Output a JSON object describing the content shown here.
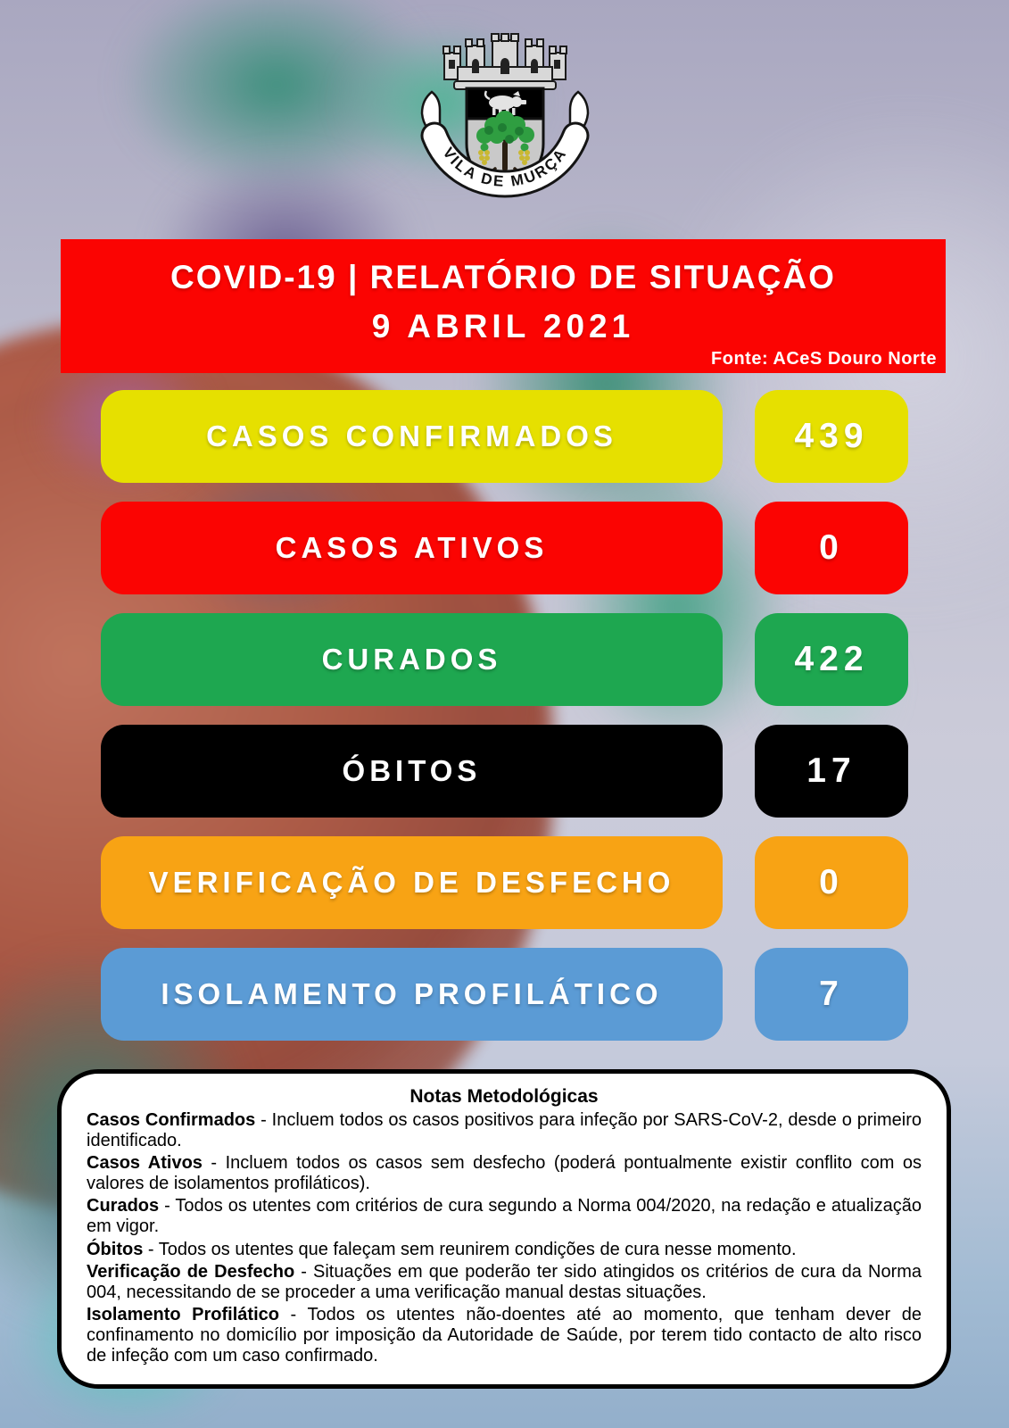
{
  "crest": {
    "banner_text": "VILA DE MURÇA"
  },
  "header": {
    "title": "COVID-19  |  RELATÓRIO DE SITUAÇÃO",
    "date": "9 ABRIL 2021",
    "source": "Fonte: ACeS Douro Norte",
    "background_color": "#fb0402",
    "text_color": "#ffffff"
  },
  "stats": [
    {
      "label": "CASOS CONFIRMADOS",
      "value": "439",
      "color": "#e6e000"
    },
    {
      "label": "CASOS ATIVOS",
      "value": "0",
      "color": "#fb0402"
    },
    {
      "label": "CURADOS",
      "value": "422",
      "color": "#1ea750"
    },
    {
      "label": "ÓBITOS",
      "value": "17",
      "color": "#000000"
    },
    {
      "label": "VERIFICAÇÃO DE DESFECHO",
      "value": "0",
      "color": "#f8a314"
    },
    {
      "label": "ISOLAMENTO PROFILÁTICO",
      "value": "7",
      "color": "#5b9bd5"
    }
  ],
  "notes": {
    "title": "Notas Metodológicas",
    "separator": " - ",
    "items": [
      {
        "term": "Casos Confirmados",
        "text": "Incluem todos os casos positivos para infeção por SARS-CoV-2, desde o primeiro identificado."
      },
      {
        "term": "Casos Ativos",
        "text": "Incluem todos os casos sem desfecho (poderá pontualmente existir conflito com os valores de isolamentos profiláticos)."
      },
      {
        "term": "Curados",
        "text": "Todos os utentes com critérios de cura segundo a Norma 004/2020, na redação e atualização em vigor."
      },
      {
        "term": "Óbitos",
        "text": "Todos os utentes que faleçam sem reunirem condições de cura nesse momento."
      },
      {
        "term": "Verificação de Desfecho",
        "text": "Situações em que poderão ter sido atingidos os critérios de cura da Norma 004, necessitando de se proceder a uma verificação manual destas situações."
      },
      {
        "term": "Isolamento Profilático",
        "text": "Todos os utentes não-doentes até ao momento, que tenham dever de confinamento no domicílio por imposição da Autoridade de Saúde, por terem tido contacto de alto risco de infeção com um caso confirmado."
      }
    ]
  }
}
